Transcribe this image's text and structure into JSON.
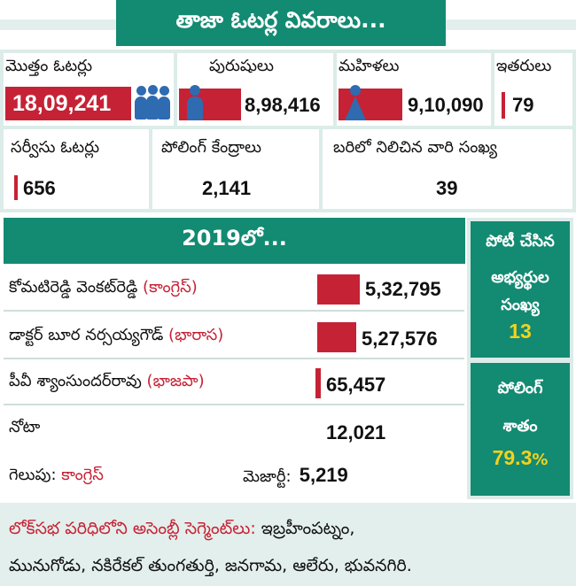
{
  "title": "తాజా ఓటర్ల వివరాలు...",
  "voters": {
    "total_label": "మొత్తం ఓటర్లు",
    "total_value": "18,09,241",
    "male_label": "పురుషులు",
    "male_value": "8,98,416",
    "female_label": "మహిళలు",
    "female_value": "9,10,090",
    "others_label": "ఇతరులు",
    "others_value": "79",
    "service_label": "సర్వీసు ఓటర్లు",
    "service_value": "656",
    "polling_stations_label": "పోలింగ్ కేంద్రాలు",
    "polling_stations_value": "2,141",
    "contestants_label": "బరిలో నిలిచిన వారి సంఖ్య",
    "contestants_value": "39"
  },
  "results_2019": {
    "heading": "2019లో...",
    "candidates": [
      {
        "name": "కోమటిరెడ్డి వెంకట్‌రెడ్డి",
        "party": "(కాంగ్రెస్)",
        "votes": "5,32,795"
      },
      {
        "name": "డాక్టర్ బూర నర్సయ్యగౌడ్",
        "party": "(భారాస)",
        "votes": "5,27,576"
      },
      {
        "name": "పీవీ శ్యాంసుందర్‌రావు",
        "party": "(భాజపా)",
        "votes": "65,457"
      },
      {
        "name": "నోటా",
        "party": "",
        "votes": "12,021"
      }
    ],
    "winner_label": "గెలుపు:",
    "winner_value": "కాంగ్రెస్",
    "majority_label": "మెజార్టీ:",
    "majority_value": "5,219"
  },
  "side": {
    "contested_label_1": "పోటీ చేసిన",
    "contested_label_2": "అభ్యర్థుల",
    "contested_label_3": "సంఖ్య",
    "contested_value": "13",
    "polling_label_1": "పోలింగ్",
    "polling_label_2": "శాతం",
    "polling_value": "79.3",
    "polling_unit": "%"
  },
  "segments": {
    "label": "లోక్‌సభ పరిధిలోని అసెంబ్లీ సెగ్మెంట్‌లు:",
    "line1": "ఇబ్రహీంపట్నం,",
    "line2": "మునుగోడు, నకిరేకల్ తుంగతుర్తి, జనగామ, ఆలేరు, భువనగిరి."
  },
  "colors": {
    "teal": "#138a72",
    "red": "#c62235",
    "icon_blue": "#2f6bb0",
    "highlight_yellow": "#f4d21c"
  },
  "icons": [
    "group-people-icon",
    "male-person-icon",
    "female-person-icon"
  ]
}
